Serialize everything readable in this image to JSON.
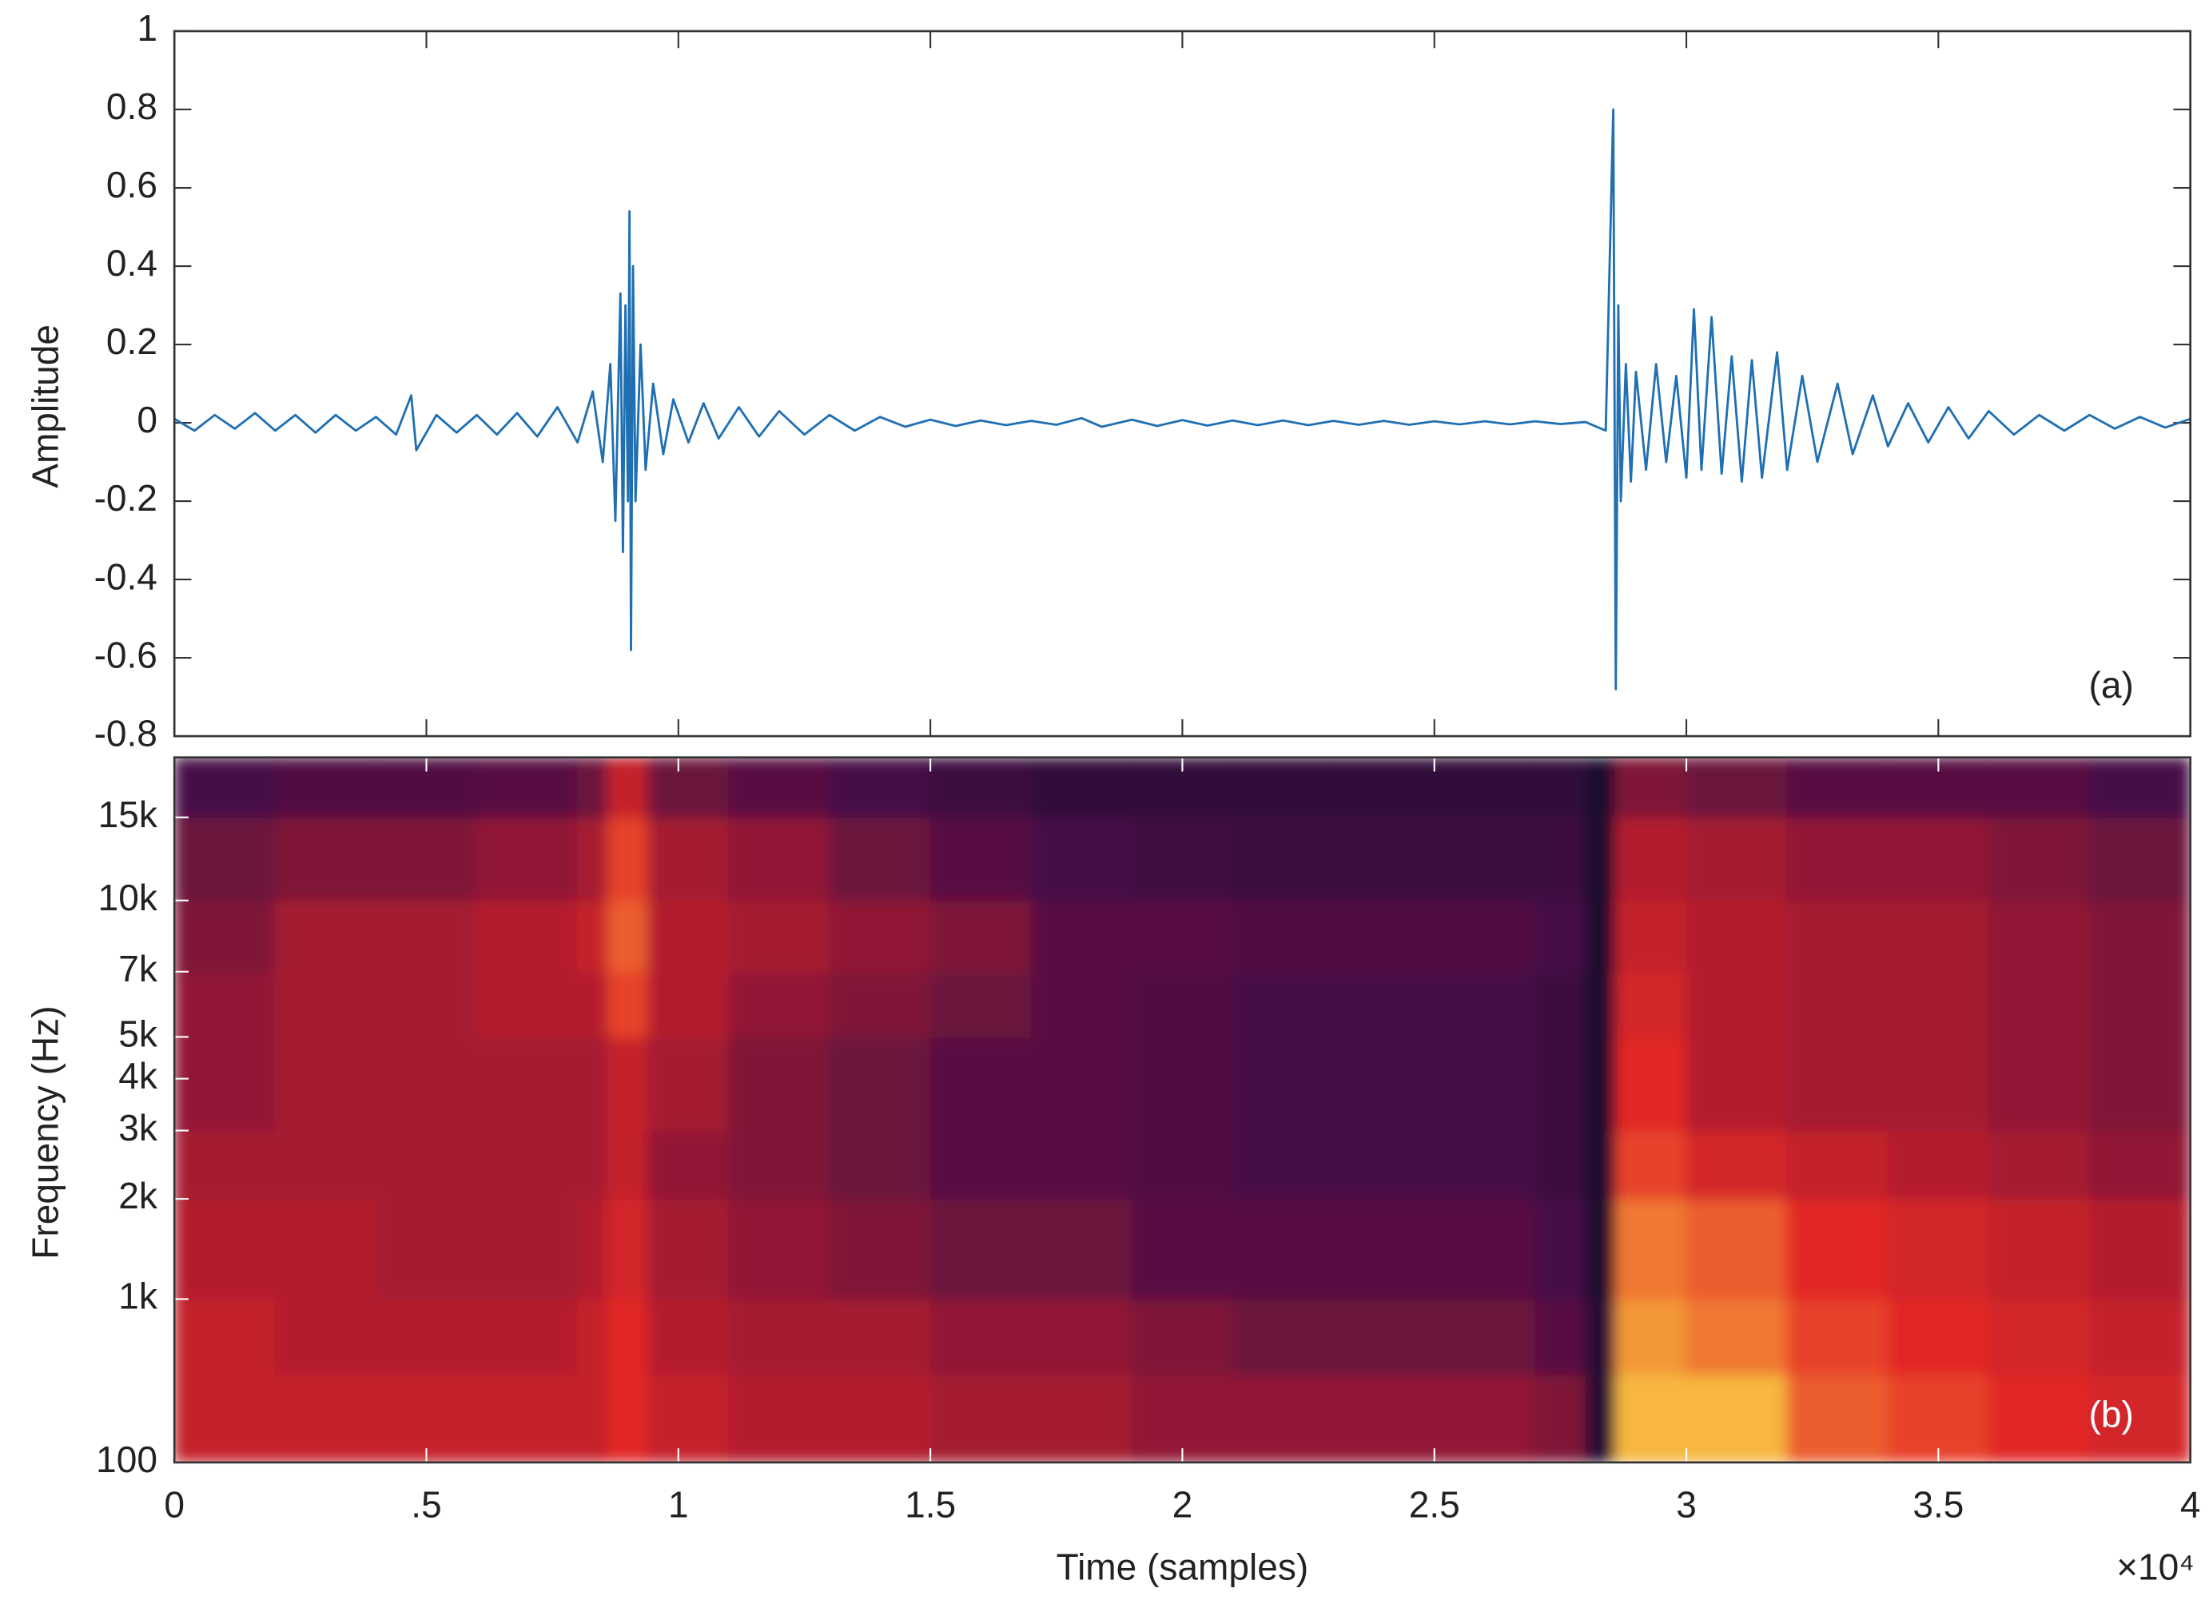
{
  "chart_data": [
    {
      "type": "line",
      "ylabel": "Amplitude",
      "annotation": "(a)",
      "color": "#1f6fb2",
      "x": [
        0,
        400,
        800,
        1200,
        1600,
        2000,
        2400,
        2800,
        3200,
        3600,
        4000,
        4400,
        4700,
        4800,
        5200,
        5600,
        6000,
        6400,
        6800,
        7200,
        7600,
        8000,
        8300,
        8500,
        8650,
        8750,
        8850,
        8900,
        8950,
        9000,
        9030,
        9060,
        9100,
        9150,
        9250,
        9350,
        9500,
        9700,
        9900,
        10200,
        10500,
        10800,
        11200,
        11600,
        12000,
        12500,
        13000,
        13500,
        14000,
        14500,
        15000,
        15500,
        16000,
        16500,
        17000,
        17500,
        18000,
        18400,
        19000,
        19500,
        20000,
        20500,
        21000,
        21500,
        22000,
        22500,
        23000,
        23500,
        24000,
        24500,
        25000,
        25500,
        26000,
        26500,
        27000,
        27500,
        28000,
        28400,
        28550,
        28600,
        28650,
        28700,
        28800,
        28900,
        29000,
        29200,
        29400,
        29600,
        29800,
        30000,
        30150,
        30300,
        30500,
        30700,
        30900,
        31100,
        31300,
        31500,
        31800,
        32000,
        32300,
        32600,
        33000,
        33300,
        33700,
        34000,
        34400,
        34800,
        35200,
        35600,
        36000,
        36500,
        37000,
        37500,
        38000,
        38500,
        39000,
        39500,
        40000
      ],
      "values": [
        0.01,
        -0.02,
        0.02,
        -0.015,
        0.025,
        -0.02,
        0.02,
        -0.025,
        0.02,
        -0.02,
        0.015,
        -0.03,
        0.07,
        -0.07,
        0.02,
        -0.025,
        0.02,
        -0.03,
        0.025,
        -0.035,
        0.04,
        -0.05,
        0.08,
        -0.1,
        0.15,
        -0.25,
        0.33,
        -0.33,
        0.3,
        -0.2,
        0.54,
        -0.58,
        0.4,
        -0.2,
        0.2,
        -0.12,
        0.1,
        -0.08,
        0.06,
        -0.05,
        0.05,
        -0.04,
        0.04,
        -0.035,
        0.03,
        -0.03,
        0.02,
        -0.02,
        0.015,
        -0.01,
        0.008,
        -0.008,
        0.006,
        -0.006,
        0.005,
        -0.005,
        0.012,
        -0.01,
        0.008,
        -0.008,
        0.007,
        -0.007,
        0.006,
        -0.006,
        0.006,
        -0.006,
        0.005,
        -0.005,
        0.005,
        -0.005,
        0.004,
        -0.004,
        0.004,
        -0.004,
        0.004,
        -0.003,
        0.002,
        -0.02,
        0.8,
        -0.68,
        0.3,
        -0.2,
        0.15,
        -0.15,
        0.13,
        -0.12,
        0.15,
        -0.1,
        0.12,
        -0.14,
        0.29,
        -0.12,
        0.27,
        -0.13,
        0.17,
        -0.15,
        0.16,
        -0.14,
        0.18,
        -0.12,
        0.12,
        -0.1,
        0.1,
        -0.08,
        0.07,
        -0.06,
        0.05,
        -0.05,
        0.04,
        -0.04,
        0.03,
        -0.03,
        0.02,
        -0.02,
        0.02,
        -0.015,
        0.015,
        -0.012,
        0.01
      ],
      "xlim": [
        0,
        40000
      ],
      "xticks": [
        0,
        5000,
        10000,
        15000,
        20000,
        25000,
        30000,
        35000,
        40000
      ],
      "show_xtick_labels": false,
      "ylim": [
        -0.8,
        1
      ],
      "yticks": [
        -0.8,
        -0.6,
        -0.4,
        -0.2,
        0,
        0.2,
        0.4,
        0.6,
        0.8,
        1
      ]
    },
    {
      "type": "heatmap",
      "xlabel": "Time (samples)",
      "ylabel": "Frequency (Hz)",
      "annotation": "(b)",
      "x_multiplier": "×10⁴",
      "colormap": "inferno",
      "yscale": "mel",
      "x_edges": [
        0,
        2000,
        4000,
        6000,
        8000,
        8600,
        9400,
        11000,
        13000,
        15000,
        17000,
        19000,
        21000,
        23000,
        25000,
        27000,
        28000,
        28600,
        30000,
        32000,
        34000,
        36000,
        38000,
        40000
      ],
      "y_edges": [
        100,
        500,
        1000,
        2000,
        3000,
        5000,
        7000,
        10000,
        15000,
        20000
      ],
      "z": [
        [
          0.6,
          0.6,
          0.6,
          0.6,
          0.6,
          0.7,
          0.6,
          0.55,
          0.55,
          0.5,
          0.5,
          0.45,
          0.45,
          0.45,
          0.45,
          0.4,
          0.1,
          0.95,
          0.95,
          0.8,
          0.75,
          0.7,
          0.65
        ],
        [
          0.6,
          0.55,
          0.55,
          0.55,
          0.6,
          0.7,
          0.55,
          0.5,
          0.5,
          0.45,
          0.45,
          0.4,
          0.35,
          0.35,
          0.35,
          0.3,
          0.1,
          0.9,
          0.85,
          0.75,
          0.7,
          0.65,
          0.6
        ],
        [
          0.55,
          0.55,
          0.5,
          0.5,
          0.55,
          0.65,
          0.5,
          0.45,
          0.4,
          0.35,
          0.35,
          0.3,
          0.3,
          0.3,
          0.3,
          0.25,
          0.05,
          0.85,
          0.8,
          0.7,
          0.65,
          0.6,
          0.55
        ],
        [
          0.5,
          0.5,
          0.5,
          0.5,
          0.5,
          0.6,
          0.45,
          0.4,
          0.35,
          0.3,
          0.3,
          0.28,
          0.25,
          0.25,
          0.25,
          0.2,
          0.05,
          0.75,
          0.65,
          0.6,
          0.55,
          0.5,
          0.45
        ],
        [
          0.45,
          0.5,
          0.5,
          0.5,
          0.5,
          0.6,
          0.5,
          0.4,
          0.35,
          0.3,
          0.3,
          0.28,
          0.25,
          0.25,
          0.25,
          0.2,
          0.05,
          0.7,
          0.55,
          0.5,
          0.5,
          0.45,
          0.4
        ],
        [
          0.45,
          0.5,
          0.5,
          0.55,
          0.55,
          0.75,
          0.55,
          0.45,
          0.4,
          0.35,
          0.3,
          0.28,
          0.25,
          0.25,
          0.25,
          0.2,
          0.05,
          0.65,
          0.55,
          0.5,
          0.5,
          0.45,
          0.4
        ],
        [
          0.4,
          0.5,
          0.5,
          0.55,
          0.6,
          0.8,
          0.55,
          0.5,
          0.45,
          0.4,
          0.3,
          0.3,
          0.28,
          0.28,
          0.28,
          0.25,
          0.05,
          0.6,
          0.55,
          0.5,
          0.5,
          0.45,
          0.4
        ],
        [
          0.35,
          0.4,
          0.4,
          0.45,
          0.5,
          0.75,
          0.5,
          0.45,
          0.35,
          0.3,
          0.25,
          0.22,
          0.2,
          0.2,
          0.2,
          0.2,
          0.05,
          0.55,
          0.5,
          0.45,
          0.45,
          0.4,
          0.35
        ],
        [
          0.25,
          0.28,
          0.28,
          0.3,
          0.35,
          0.6,
          0.35,
          0.3,
          0.25,
          0.2,
          0.15,
          0.15,
          0.15,
          0.15,
          0.15,
          0.15,
          0.05,
          0.4,
          0.35,
          0.3,
          0.3,
          0.3,
          0.25
        ]
      ],
      "xlim": [
        0,
        40000
      ],
      "xticks": [
        0,
        {
          "value": 5000,
          "label": ".5"
        },
        {
          "value": 10000,
          "label": "1"
        },
        {
          "value": 15000,
          "label": "1.5"
        },
        {
          "value": 20000,
          "label": "2"
        },
        {
          "value": 25000,
          "label": "2.5"
        },
        {
          "value": 30000,
          "label": "3"
        },
        {
          "value": 35000,
          "label": "3.5"
        },
        {
          "value": 40000,
          "label": "4"
        }
      ],
      "ylim": [
        100,
        20000
      ],
      "yticks": [
        100,
        {
          "value": 1000,
          "label": "1k"
        },
        {
          "value": 2000,
          "label": "2k"
        },
        {
          "value": 3000,
          "label": "3k"
        },
        {
          "value": 4000,
          "label": "4k"
        },
        {
          "value": 5000,
          "label": "5k"
        },
        {
          "value": 7000,
          "label": "7k"
        },
        {
          "value": 10000,
          "label": "10k"
        },
        {
          "value": 15000,
          "label": "15k"
        }
      ]
    }
  ]
}
